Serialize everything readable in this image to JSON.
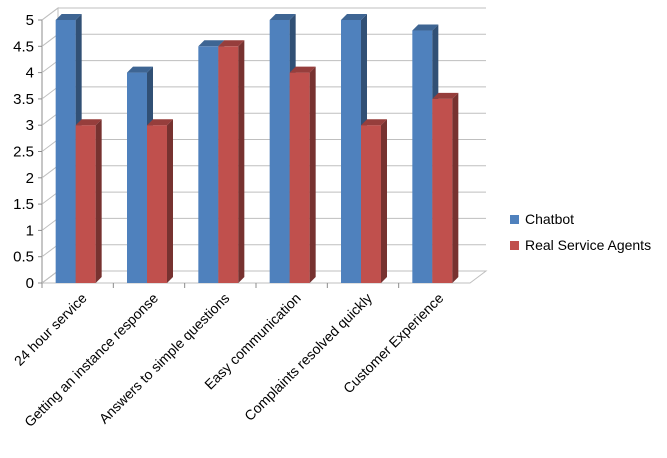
{
  "chart_data": {
    "type": "bar",
    "title": "",
    "xlabel": "",
    "ylabel": "",
    "categories": [
      "24 hour service",
      "Getting an instance response",
      "Answers to simple questions",
      "Easy communication",
      "Complaints resolved quickly",
      "Customer Experience"
    ],
    "series": [
      {
        "name": "Chatbot",
        "values": [
          5,
          4,
          4.5,
          5,
          5,
          4.8
        ],
        "color": "#4F81BD"
      },
      {
        "name": "Real Service Agents",
        "values": [
          3,
          3,
          4.5,
          4,
          3,
          3.5
        ],
        "color": "#C0504D"
      }
    ],
    "ylim": [
      0,
      5
    ],
    "yticks": [
      "0",
      "0.5",
      "1",
      "1.5",
      "2",
      "2.5",
      "3",
      "3.5",
      "4",
      "4.5",
      "5"
    ],
    "grid": true,
    "legend_position": "right",
    "style": "3d-clustered-column"
  }
}
